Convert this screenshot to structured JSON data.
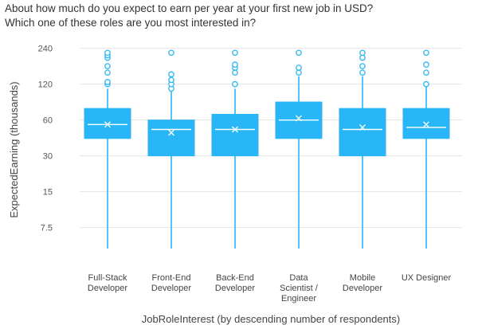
{
  "chart_data": {
    "type": "box",
    "title_lines": [
      "About how much do you expect to earn per year at your first new job in USD?",
      "Which one of these roles are you most interested in?"
    ],
    "xlabel": "JobRoleInterest (by descending number of respondents)",
    "ylabel": "ExpectedEarning (thousands)",
    "y_scale": "log",
    "ylim": [
      5,
      250
    ],
    "y_ticks": [
      7.5,
      15,
      30,
      60,
      120,
      240
    ],
    "y_tick_labels": [
      "7.5",
      "15",
      "30",
      "60",
      "120",
      "240"
    ],
    "grid": "horizontal",
    "box_color": "#29b6f6",
    "categories": [
      {
        "lines": [
          "Full-Stack",
          "Developer"
        ],
        "whisker_low": 5,
        "q1": 42,
        "median": 55,
        "mean": 55,
        "q3": 75,
        "whisker_high": 110,
        "outliers": [
          120,
          125,
          150,
          170,
          200,
          210,
          220
        ]
      },
      {
        "lines": [
          "Front-End",
          "Developer"
        ],
        "whisker_low": 5,
        "q1": 30,
        "median": 50,
        "mean": 47,
        "q3": 60,
        "whisker_high": 105,
        "outliers": [
          110,
          120,
          130,
          145,
          220
        ]
      },
      {
        "lines": [
          "Back-End",
          "Developer"
        ],
        "whisker_low": 5,
        "q1": 30,
        "median": 50,
        "mean": 50,
        "q3": 67,
        "whisker_high": 110,
        "outliers": [
          120,
          150,
          165,
          175,
          220
        ]
      },
      {
        "lines": [
          "Data",
          "Scientist /",
          "Engineer"
        ],
        "whisker_low": 5,
        "q1": 42,
        "median": 60,
        "mean": 62,
        "q3": 85,
        "whisker_high": 140,
        "outliers": [
          150,
          165,
          220
        ]
      },
      {
        "lines": [
          "Mobile",
          "Developer"
        ],
        "whisker_low": 5,
        "q1": 30,
        "median": 50,
        "mean": 52,
        "q3": 75,
        "whisker_high": 140,
        "outliers": [
          150,
          170,
          200,
          220
        ]
      },
      {
        "lines": [
          "UX Designer"
        ],
        "whisker_low": 5,
        "q1": 42,
        "median": 52,
        "mean": 55,
        "q3": 75,
        "whisker_high": 115,
        "outliers": [
          120,
          150,
          175,
          220
        ]
      }
    ]
  }
}
